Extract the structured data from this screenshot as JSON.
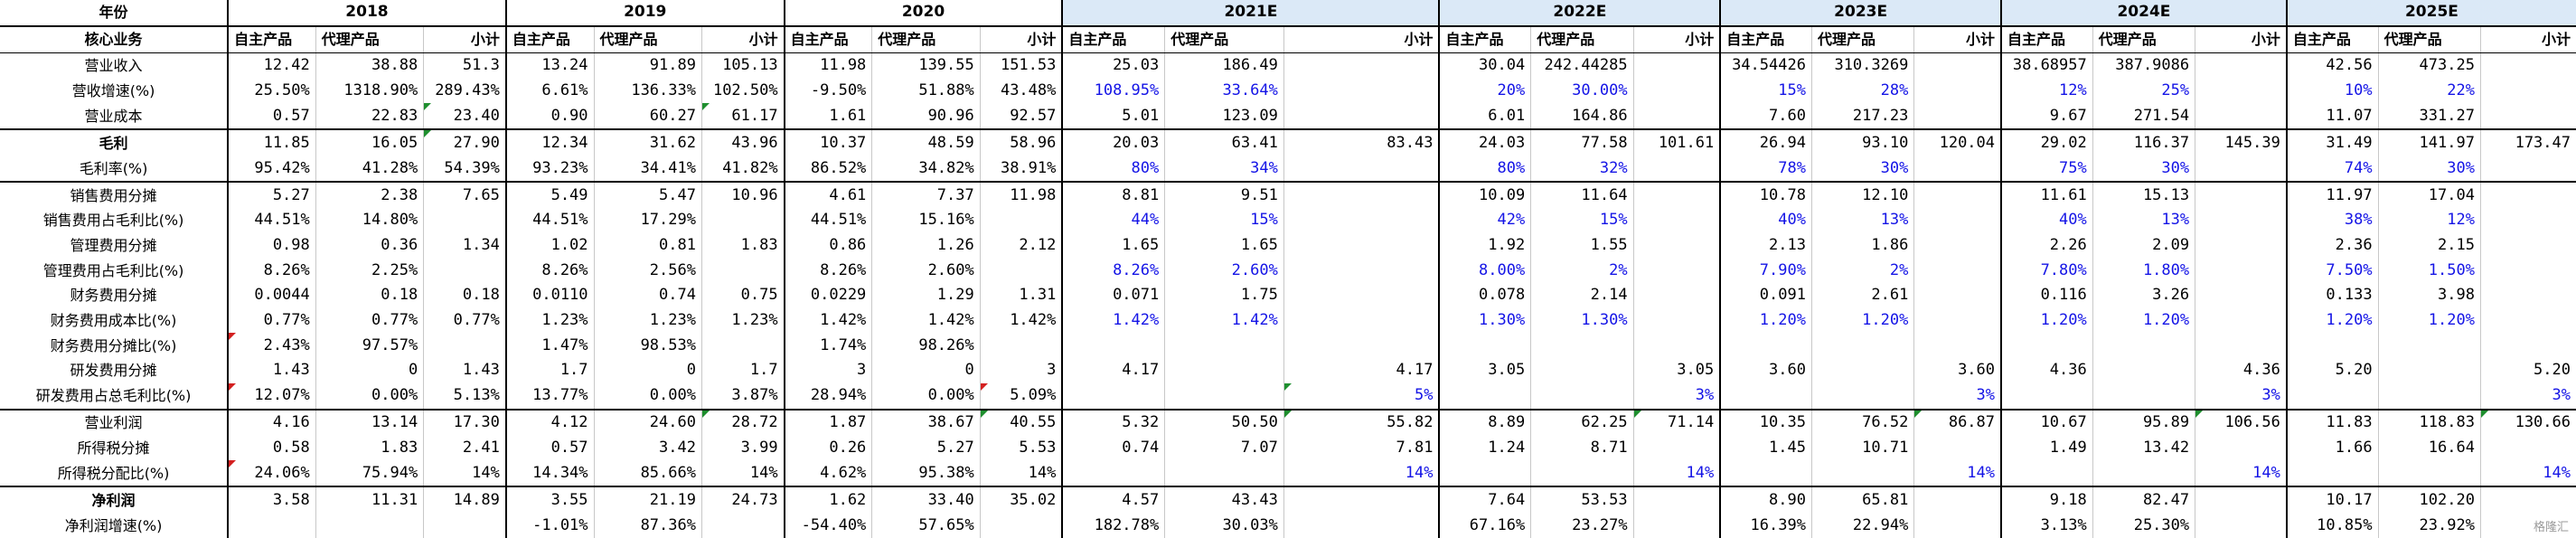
{
  "header": {
    "corner": "年份",
    "row_label": "核心业务",
    "years": [
      "2018",
      "2019",
      "2020",
      "2021E",
      "2022E",
      "2023E",
      "2024E",
      "2025E"
    ],
    "sub": [
      "自主产品",
      "代理产品",
      "小计"
    ]
  },
  "rows": [
    {
      "label": "营业收入",
      "values": [
        [
          "12.42",
          "38.88",
          "51.3"
        ],
        [
          "13.24",
          "91.89",
          "105.13"
        ],
        [
          "11.98",
          "139.55",
          "151.53"
        ],
        [
          "25.03",
          "186.49",
          ""
        ],
        [
          "30.04",
          "242.44285",
          ""
        ],
        [
          "34.54426",
          "310.3269",
          ""
        ],
        [
          "38.68957",
          "387.9086",
          ""
        ],
        [
          "42.56",
          "473.25",
          ""
        ]
      ]
    },
    {
      "label": "营收增速(%)",
      "values": [
        [
          "25.50%",
          "1318.90%",
          "289.43%"
        ],
        [
          "6.61%",
          "136.33%",
          "102.50%"
        ],
        [
          "-9.50%",
          "51.88%",
          "43.48%"
        ],
        [
          "108.95%",
          "33.64%",
          ""
        ],
        [
          "20%",
          "30.00%",
          ""
        ],
        [
          "15%",
          "28%",
          ""
        ],
        [
          "12%",
          "25%",
          ""
        ],
        [
          "10%",
          "22%",
          ""
        ]
      ]
    },
    {
      "label": "营业成本",
      "values": [
        [
          "0.57",
          "22.83",
          "23.40"
        ],
        [
          "0.90",
          "60.27",
          "61.17"
        ],
        [
          "1.61",
          "90.96",
          "92.57"
        ],
        [
          "5.01",
          "123.09",
          ""
        ],
        [
          "6.01",
          "164.86",
          ""
        ],
        [
          "7.60",
          "217.23",
          ""
        ],
        [
          "9.67",
          "271.54",
          ""
        ],
        [
          "11.07",
          "331.27",
          ""
        ]
      ]
    },
    {
      "label": "毛利",
      "values": [
        [
          "11.85",
          "16.05",
          "27.90"
        ],
        [
          "12.34",
          "31.62",
          "43.96"
        ],
        [
          "10.37",
          "48.59",
          "58.96"
        ],
        [
          "20.03",
          "63.41",
          "83.43"
        ],
        [
          "24.03",
          "77.58",
          "101.61"
        ],
        [
          "26.94",
          "93.10",
          "120.04"
        ],
        [
          "29.02",
          "116.37",
          "145.39"
        ],
        [
          "31.49",
          "141.97",
          "173.47"
        ]
      ]
    },
    {
      "label": "毛利率(%)",
      "values": [
        [
          "95.42%",
          "41.28%",
          "54.39%"
        ],
        [
          "93.23%",
          "34.41%",
          "41.82%"
        ],
        [
          "86.52%",
          "34.82%",
          "38.91%"
        ],
        [
          "80%",
          "34%",
          ""
        ],
        [
          "80%",
          "32%",
          ""
        ],
        [
          "78%",
          "30%",
          ""
        ],
        [
          "75%",
          "30%",
          ""
        ],
        [
          "74%",
          "30%",
          ""
        ]
      ]
    },
    {
      "label": "销售费用分摊",
      "values": [
        [
          "5.27",
          "2.38",
          "7.65"
        ],
        [
          "5.49",
          "5.47",
          "10.96"
        ],
        [
          "4.61",
          "7.37",
          "11.98"
        ],
        [
          "8.81",
          "9.51",
          ""
        ],
        [
          "10.09",
          "11.64",
          ""
        ],
        [
          "10.78",
          "12.10",
          ""
        ],
        [
          "11.61",
          "15.13",
          ""
        ],
        [
          "11.97",
          "17.04",
          ""
        ]
      ]
    },
    {
      "label": "销售费用占毛利比(%)",
      "values": [
        [
          "44.51%",
          "14.80%",
          ""
        ],
        [
          "44.51%",
          "17.29%",
          ""
        ],
        [
          "44.51%",
          "15.16%",
          ""
        ],
        [
          "44%",
          "15%",
          ""
        ],
        [
          "42%",
          "15%",
          ""
        ],
        [
          "40%",
          "13%",
          ""
        ],
        [
          "40%",
          "13%",
          ""
        ],
        [
          "38%",
          "12%",
          ""
        ]
      ]
    },
    {
      "label": "管理费用分摊",
      "values": [
        [
          "0.98",
          "0.36",
          "1.34"
        ],
        [
          "1.02",
          "0.81",
          "1.83"
        ],
        [
          "0.86",
          "1.26",
          "2.12"
        ],
        [
          "1.65",
          "1.65",
          ""
        ],
        [
          "1.92",
          "1.55",
          ""
        ],
        [
          "2.13",
          "1.86",
          ""
        ],
        [
          "2.26",
          "2.09",
          ""
        ],
        [
          "2.36",
          "2.15",
          ""
        ]
      ]
    },
    {
      "label": "管理费用占毛利比(%)",
      "values": [
        [
          "8.26%",
          "2.25%",
          ""
        ],
        [
          "8.26%",
          "2.56%",
          ""
        ],
        [
          "8.26%",
          "2.60%",
          ""
        ],
        [
          "8.26%",
          "2.60%",
          ""
        ],
        [
          "8.00%",
          "2%",
          ""
        ],
        [
          "7.90%",
          "2%",
          ""
        ],
        [
          "7.80%",
          "1.80%",
          ""
        ],
        [
          "7.50%",
          "1.50%",
          ""
        ]
      ]
    },
    {
      "label": "财务费用分摊",
      "values": [
        [
          "0.0044",
          "0.18",
          "0.18"
        ],
        [
          "0.0110",
          "0.74",
          "0.75"
        ],
        [
          "0.0229",
          "1.29",
          "1.31"
        ],
        [
          "0.071",
          "1.75",
          ""
        ],
        [
          "0.078",
          "2.14",
          ""
        ],
        [
          "0.091",
          "2.61",
          ""
        ],
        [
          "0.116",
          "3.26",
          ""
        ],
        [
          "0.133",
          "3.98",
          ""
        ]
      ]
    },
    {
      "label": "财务费用成本比(%)",
      "values": [
        [
          "0.77%",
          "0.77%",
          "0.77%"
        ],
        [
          "1.23%",
          "1.23%",
          "1.23%"
        ],
        [
          "1.42%",
          "1.42%",
          "1.42%"
        ],
        [
          "1.42%",
          "1.42%",
          ""
        ],
        [
          "1.30%",
          "1.30%",
          ""
        ],
        [
          "1.20%",
          "1.20%",
          ""
        ],
        [
          "1.20%",
          "1.20%",
          ""
        ],
        [
          "1.20%",
          "1.20%",
          ""
        ]
      ]
    },
    {
      "label": "财务费用分摊比(%)",
      "values": [
        [
          "2.43%",
          "97.57%",
          ""
        ],
        [
          "1.47%",
          "98.53%",
          ""
        ],
        [
          "1.74%",
          "98.26%",
          ""
        ],
        [
          "",
          "",
          ""
        ],
        [
          "",
          "",
          ""
        ],
        [
          "",
          "",
          ""
        ],
        [
          "",
          "",
          ""
        ],
        [
          "",
          "",
          ""
        ]
      ]
    },
    {
      "label": "研发费用分摊",
      "values": [
        [
          "1.43",
          "0",
          "1.43"
        ],
        [
          "1.7",
          "0",
          "1.7"
        ],
        [
          "3",
          "0",
          "3"
        ],
        [
          "4.17",
          "",
          "4.17"
        ],
        [
          "3.05",
          "",
          "3.05"
        ],
        [
          "3.60",
          "",
          "3.60"
        ],
        [
          "4.36",
          "",
          "4.36"
        ],
        [
          "5.20",
          "",
          "5.20"
        ]
      ]
    },
    {
      "label": "研发费用占总毛利比(%)",
      "values": [
        [
          "12.07%",
          "0.00%",
          "5.13%"
        ],
        [
          "13.77%",
          "0.00%",
          "3.87%"
        ],
        [
          "28.94%",
          "0.00%",
          "5.09%"
        ],
        [
          "",
          "",
          "5%"
        ],
        [
          "",
          "",
          "3%"
        ],
        [
          "",
          "",
          "3%"
        ],
        [
          "",
          "",
          "3%"
        ],
        [
          "",
          "",
          "3%"
        ]
      ]
    },
    {
      "label": "营业利润",
      "values": [
        [
          "4.16",
          "13.14",
          "17.30"
        ],
        [
          "4.12",
          "24.60",
          "28.72"
        ],
        [
          "1.87",
          "38.67",
          "40.55"
        ],
        [
          "5.32",
          "50.50",
          "55.82"
        ],
        [
          "8.89",
          "62.25",
          "71.14"
        ],
        [
          "10.35",
          "76.52",
          "86.87"
        ],
        [
          "10.67",
          "95.89",
          "106.56"
        ],
        [
          "11.83",
          "118.83",
          "130.66"
        ]
      ]
    },
    {
      "label": "所得税分摊",
      "values": [
        [
          "0.58",
          "1.83",
          "2.41"
        ],
        [
          "0.57",
          "3.42",
          "3.99"
        ],
        [
          "0.26",
          "5.27",
          "5.53"
        ],
        [
          "0.74",
          "7.07",
          "7.81"
        ],
        [
          "1.24",
          "8.71",
          ""
        ],
        [
          "1.45",
          "10.71",
          ""
        ],
        [
          "1.49",
          "13.42",
          ""
        ],
        [
          "1.66",
          "16.64",
          ""
        ]
      ]
    },
    {
      "label": "所得税分配比(%)",
      "values": [
        [
          "24.06%",
          "75.94%",
          "14%"
        ],
        [
          "14.34%",
          "85.66%",
          "14%"
        ],
        [
          "4.62%",
          "95.38%",
          "14%"
        ],
        [
          "",
          "",
          "14%"
        ],
        [
          "",
          "",
          "14%"
        ],
        [
          "",
          "",
          "14%"
        ],
        [
          "",
          "",
          "14%"
        ],
        [
          "",
          "",
          "14%"
        ]
      ]
    },
    {
      "label": "净利润",
      "values": [
        [
          "3.58",
          "11.31",
          "14.89"
        ],
        [
          "3.55",
          "21.19",
          "24.73"
        ],
        [
          "1.62",
          "33.40",
          "35.02"
        ],
        [
          "4.57",
          "43.43",
          ""
        ],
        [
          "7.64",
          "53.53",
          ""
        ],
        [
          "8.90",
          "65.81",
          ""
        ],
        [
          "9.18",
          "82.47",
          ""
        ],
        [
          "10.17",
          "102.20",
          ""
        ]
      ]
    },
    {
      "label": "净利润增速(%)",
      "values": [
        [
          "",
          "",
          ""
        ],
        [
          "-1.01%",
          "87.36%",
          ""
        ],
        [
          "-54.40%",
          "57.65%",
          ""
        ],
        [
          "182.78%",
          "30.03%",
          ""
        ],
        [
          "67.16%",
          "23.27%",
          ""
        ],
        [
          "16.39%",
          "22.94%",
          ""
        ],
        [
          "3.13%",
          "25.30%",
          ""
        ],
        [
          "10.85%",
          "23.92%",
          ""
        ]
      ]
    }
  ],
  "watermark": "格隆汇",
  "colors": {
    "estimate_header": "#dbe9f7",
    "input_text": "#1414e6",
    "marker_green": "#1f8f2f",
    "marker_red": "#d42020"
  }
}
